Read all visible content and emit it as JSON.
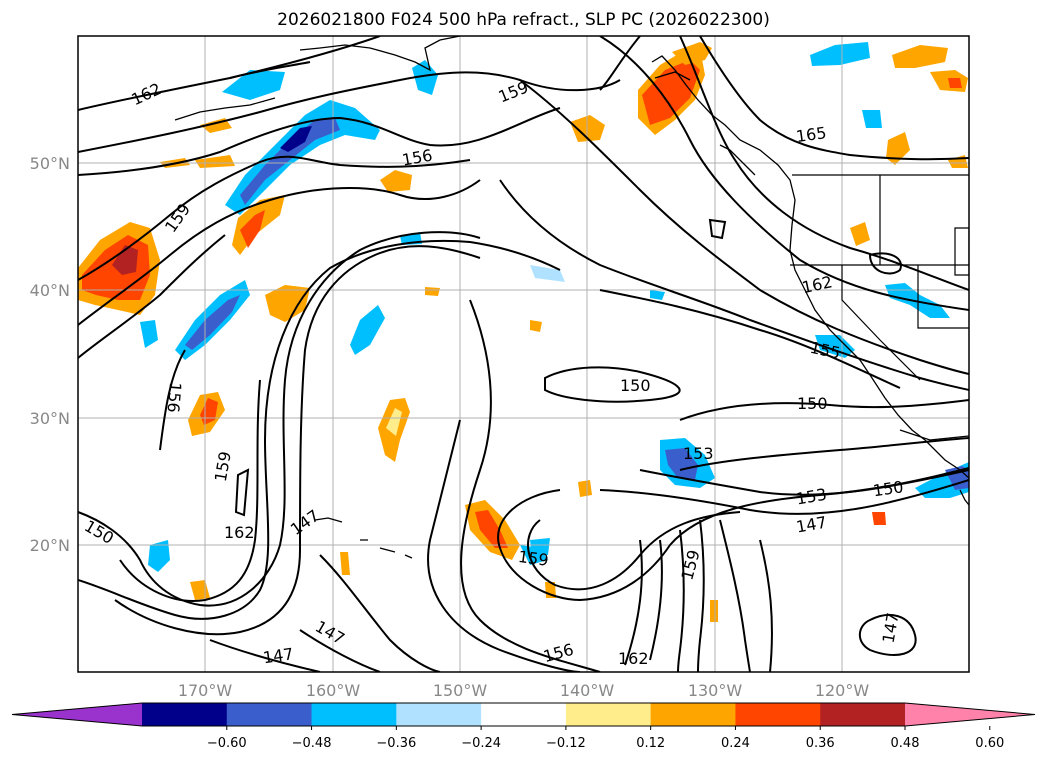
{
  "title": "2026021800 F024 500 hPa refract., SLP PC (2026022300)",
  "latitude_labels": [
    "50°N",
    "40°N",
    "30°N",
    "20°N"
  ],
  "longitude_labels": [
    "170°W",
    "160°W",
    "150°W",
    "140°W",
    "130°W",
    "120°W"
  ],
  "colorbar": {
    "tick_labels": [
      "−0.60",
      "−0.48",
      "−0.36",
      "−0.24",
      "−0.12",
      "0.12",
      "0.24",
      "0.36",
      "0.48",
      "0.60"
    ],
    "colors": [
      "#9a32cd",
      "#00008b",
      "#3a5fcd",
      "#00bfff",
      "#b0e2ff",
      "#ffffff",
      "#ffec8b",
      "#ffa500",
      "#ff4500",
      "#b22222",
      "#ff82ab"
    ]
  },
  "contour_labels": [
    {
      "text": "162"
    },
    {
      "text": "159"
    },
    {
      "text": "156"
    },
    {
      "text": "165"
    },
    {
      "text": "159"
    },
    {
      "text": "162"
    },
    {
      "text": "155"
    },
    {
      "text": "156"
    },
    {
      "text": "150"
    },
    {
      "text": "150"
    },
    {
      "text": "153"
    },
    {
      "text": "153"
    },
    {
      "text": "150"
    },
    {
      "text": "147"
    },
    {
      "text": "159"
    },
    {
      "text": "162"
    },
    {
      "text": "147"
    },
    {
      "text": "150"
    },
    {
      "text": "159"
    },
    {
      "text": "159"
    },
    {
      "text": "147"
    },
    {
      "text": "147"
    },
    {
      "text": "156"
    },
    {
      "text": "162"
    },
    {
      "text": "147"
    }
  ]
}
